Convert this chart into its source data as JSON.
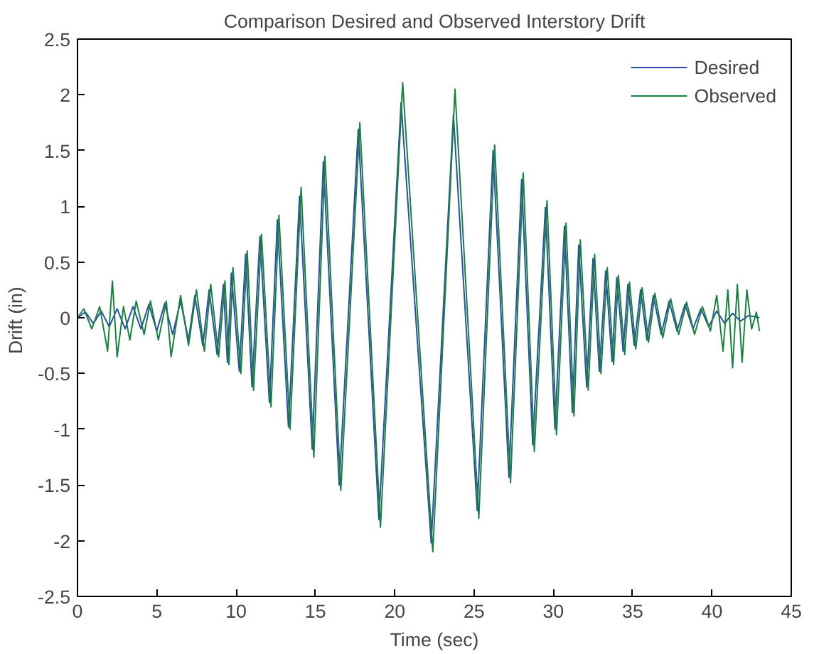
{
  "chart_data": {
    "type": "line",
    "title": "Comparison Desired and Observed Interstory Drift",
    "xlabel": "Time (sec)",
    "ylabel": "Drift  (in)",
    "xlim": [
      0,
      45
    ],
    "xticks": [
      0,
      5,
      10,
      15,
      20,
      25,
      30,
      35,
      40,
      45
    ],
    "ylim": [
      -2.5,
      2.5
    ],
    "yticks": [
      -2.5,
      -2,
      -1.5,
      -1,
      -0.5,
      0,
      0.5,
      1,
      1.5,
      2,
      2.5
    ],
    "grid": false,
    "legend": "top right",
    "marker": "none",
    "line_style": "solid",
    "series": [
      {
        "name": "Desired",
        "color": "#2b4ea6",
        "x": [
          0,
          0.5,
          1,
          1.5,
          2,
          2.5,
          3,
          3.5,
          4,
          4.5,
          5,
          5.5,
          6,
          6.5,
          7,
          7.4,
          7.9,
          8.3,
          8.8,
          9.2,
          9.45,
          9.7,
          10.2,
          10.6,
          11.0,
          11.5,
          12.1,
          12.6,
          13.3,
          14.0,
          14.8,
          15.5,
          16.5,
          17.7,
          19.0,
          20.4,
          22.3,
          23.7,
          25.2,
          26.2,
          27.2,
          28.0,
          28.7,
          29.5,
          30.1,
          30.7,
          31.2,
          31.6,
          32.1,
          32.5,
          32.9,
          33.3,
          33.7,
          34.0,
          34.4,
          34.7,
          35.1,
          35.5,
          35.9,
          36.3,
          36.8,
          37.3,
          37.8,
          38.3,
          38.8,
          39.3,
          39.8,
          40.3,
          40.8,
          41.3,
          41.8,
          42.3,
          43.0
        ],
        "values": [
          0,
          0.05,
          -0.05,
          0.06,
          -0.08,
          0.08,
          -0.1,
          0.1,
          -0.1,
          0.12,
          -0.12,
          0.13,
          -0.15,
          0.15,
          -0.2,
          0.2,
          -0.25,
          0.25,
          -0.33,
          0.3,
          -0.4,
          0.4,
          -0.48,
          0.57,
          -0.62,
          0.73,
          -0.76,
          0.88,
          -0.98,
          1.09,
          -1.18,
          1.4,
          -1.5,
          1.69,
          -1.81,
          1.93,
          -2.02,
          1.82,
          -1.73,
          1.5,
          -1.43,
          1.24,
          -1.14,
          0.99,
          -1.0,
          0.82,
          -0.85,
          0.65,
          -0.62,
          0.53,
          -0.48,
          0.42,
          -0.39,
          0.36,
          -0.3,
          0.3,
          -0.25,
          0.25,
          -0.2,
          0.2,
          -0.15,
          0.15,
          -0.12,
          0.12,
          -0.1,
          0.08,
          -0.08,
          0.06,
          -0.05,
          0.04,
          -0.03,
          0.02,
          0
        ]
      },
      {
        "name": "Observed",
        "color": "#1a8040",
        "x": [
          0,
          0.4,
          0.9,
          1.4,
          1.9,
          2.2,
          2.5,
          2.9,
          3.3,
          3.7,
          4.2,
          4.6,
          5.1,
          5.6,
          5.9,
          6.5,
          7.0,
          7.5,
          8.0,
          8.4,
          8.9,
          9.3,
          9.55,
          9.8,
          10.3,
          10.7,
          11.1,
          11.6,
          12.2,
          12.7,
          13.4,
          14.1,
          14.9,
          15.6,
          16.6,
          17.8,
          19.1,
          20.5,
          22.4,
          23.8,
          25.3,
          26.3,
          27.3,
          28.1,
          28.8,
          29.6,
          30.2,
          30.8,
          31.3,
          31.7,
          32.2,
          32.6,
          33.0,
          33.4,
          33.8,
          34.1,
          34.5,
          34.8,
          35.2,
          35.6,
          36.0,
          36.4,
          36.9,
          37.4,
          37.9,
          38.4,
          38.9,
          39.4,
          39.9,
          40.3,
          40.7,
          41.0,
          41.3,
          41.6,
          41.9,
          42.2,
          42.5,
          42.8,
          43.0
        ],
        "values": [
          0,
          0.08,
          -0.1,
          0.1,
          -0.3,
          0.33,
          -0.35,
          0.1,
          -0.2,
          0.15,
          -0.15,
          0.15,
          -0.2,
          0.15,
          -0.35,
          0.2,
          -0.25,
          0.25,
          -0.3,
          0.3,
          -0.35,
          0.33,
          -0.42,
          0.45,
          -0.5,
          0.6,
          -0.65,
          0.75,
          -0.8,
          0.92,
          -1.0,
          1.17,
          -1.25,
          1.45,
          -1.55,
          1.75,
          -1.88,
          2.11,
          -2.1,
          2.05,
          -1.8,
          1.55,
          -1.48,
          1.3,
          -1.2,
          1.05,
          -1.05,
          0.85,
          -0.88,
          0.7,
          -0.65,
          0.57,
          -0.5,
          0.45,
          -0.42,
          0.38,
          -0.33,
          0.32,
          -0.28,
          0.27,
          -0.22,
          0.22,
          -0.18,
          0.17,
          -0.15,
          0.14,
          -0.15,
          0.1,
          -0.12,
          0.2,
          -0.3,
          0.25,
          -0.45,
          0.3,
          -0.4,
          0.25,
          -0.1,
          0.05,
          -0.12
        ]
      }
    ]
  }
}
